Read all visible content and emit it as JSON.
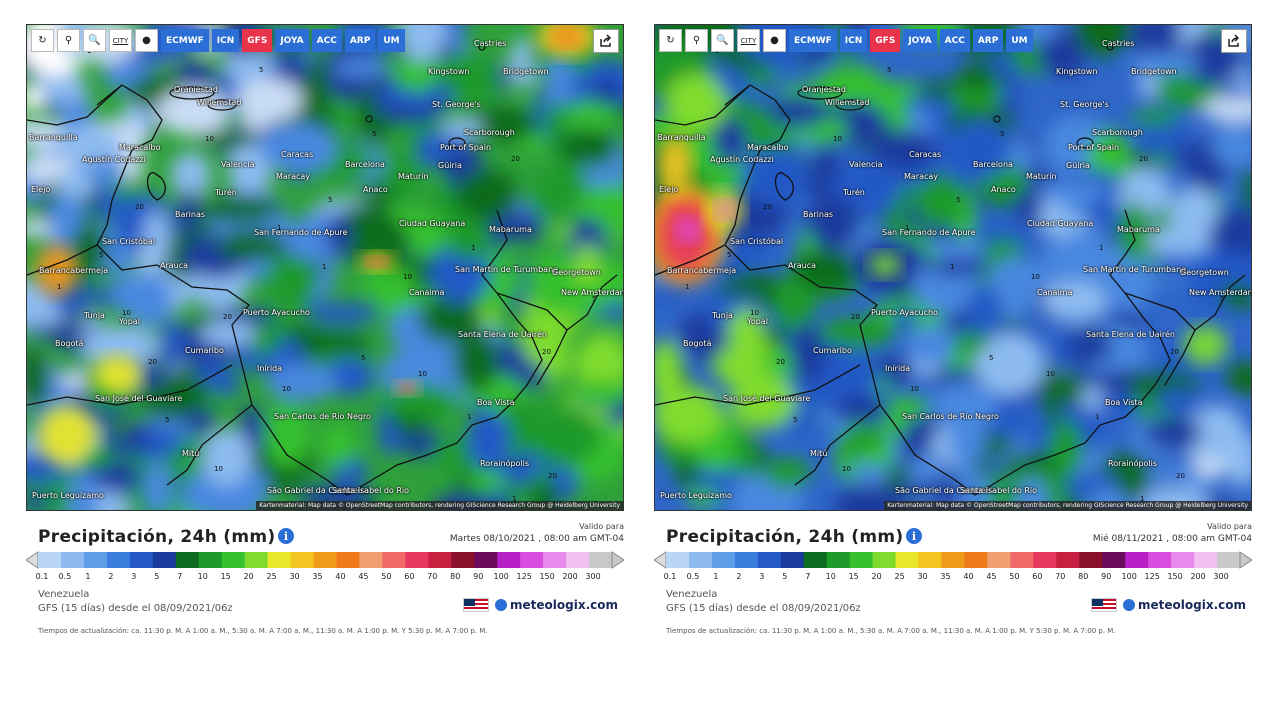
{
  "toolbar": {
    "buttons": [
      {
        "name": "refresh-button",
        "label": "↻"
      },
      {
        "name": "location-button",
        "label": "⚲"
      },
      {
        "name": "zoom-button",
        "label": "🔍"
      },
      {
        "name": "city-button",
        "label": "CITY"
      },
      {
        "name": "dot-button",
        "label": "●"
      }
    ],
    "models": [
      "ECMWF",
      "ICN",
      "GFS",
      "JOYA",
      "ACC",
      "ARP",
      "UM"
    ],
    "active_model": "GFS"
  },
  "attribution": "Kartenmaterial: Map data © OpenStreetMap contributors, rendering GIScience Research Group @ Heidelberg University",
  "legend": {
    "title": "Precipitación, 24h (mm)",
    "valid_label": "Valido para",
    "scale_values": [
      "0.1",
      "0.5",
      "1",
      "2",
      "3",
      "5",
      "7",
      "10",
      "15",
      "20",
      "25",
      "30",
      "35",
      "40",
      "45",
      "50",
      "60",
      "70",
      "80",
      "90",
      "100",
      "125",
      "150",
      "200",
      "300"
    ],
    "scale_colors": [
      "#b9d6f7",
      "#8dbbf0",
      "#5e9ee8",
      "#3b7ddd",
      "#2358c6",
      "#1a3a9e",
      "#0c6b1e",
      "#1d9a2a",
      "#36c02f",
      "#7fdc2e",
      "#e9e62b",
      "#f2c521",
      "#f09a1c",
      "#ee7a1b",
      "#f0a070",
      "#f06a6a",
      "#e6385e",
      "#c81e3f",
      "#8a0f2a",
      "#6a0a5a",
      "#b51fc4",
      "#d94ee0",
      "#e98aee",
      "#f4c0f3",
      "#c9c9c9"
    ]
  },
  "panels": [
    {
      "valid_date": "Martes 08/10/2021 , 08:00 am GMT-04",
      "region": "Venezuela",
      "model_run": "GFS (15 días) desde el 08/09/2021/06z",
      "brand": "meteologix.com",
      "update_times": "Tiempos de actualización: ca. 11:30 p. M. A 1:00 a. M., 5:30 a. M. A 7:00 a. M., 11:30 a. M. A 1:00 p. M. Y 5:30 p. M. A 7:00 p. M."
    },
    {
      "valid_date": "Mié 08/11/2021 , 08:00 am GMT-04",
      "region": "Venezuela",
      "model_run": "GFS (15 días) desde el 08/09/2021/06z",
      "brand": "meteologix.com",
      "update_times": "Tiempos de actualización: ca. 11:30 p. M. A 1:00 a. M., 5:30 a. M. A 7:00 a. M., 11:30 a. M. A 1:00 p. M. Y 5:30 p. M. A 7:00 p. M."
    }
  ],
  "cities": [
    "Castries",
    "Kingstown",
    "Bridgetown",
    "Oranjestad",
    "Willemstad",
    "St. George's",
    "Scarborough",
    "Barranquilla",
    "Maracaibo",
    "Port of Spain",
    "Caracas",
    "Barcelona",
    "Güiria",
    "Agustín Codazzi",
    "Valencia",
    "Maracay",
    "Maturín",
    "Anaco",
    "Turén",
    "Barinas",
    "Ciudad Guayana",
    "San Cristóbal",
    "San Fernando de Apure",
    "Mabaruma",
    "Barrancabermeja",
    "Arauca",
    "San Martín de Turumbang",
    "Georgetown",
    "Canaima",
    "New Amsterdam",
    "Tunja",
    "Yopal",
    "Puerto Ayacucho",
    "Bogotá",
    "Cumaribo",
    "Santa Elena de Uairén",
    "Inírida",
    "Boa Vista",
    "San José del Guaviare",
    "San Carlos de Río Negro",
    "Mitú",
    "Rorainópolis",
    "São Gabriel da Cachoeira",
    "Santa Isabel do Rio",
    "Puerto Leguízamo",
    "Elejo"
  ],
  "contour_numbers": [
    "1",
    "5",
    "10",
    "20"
  ]
}
